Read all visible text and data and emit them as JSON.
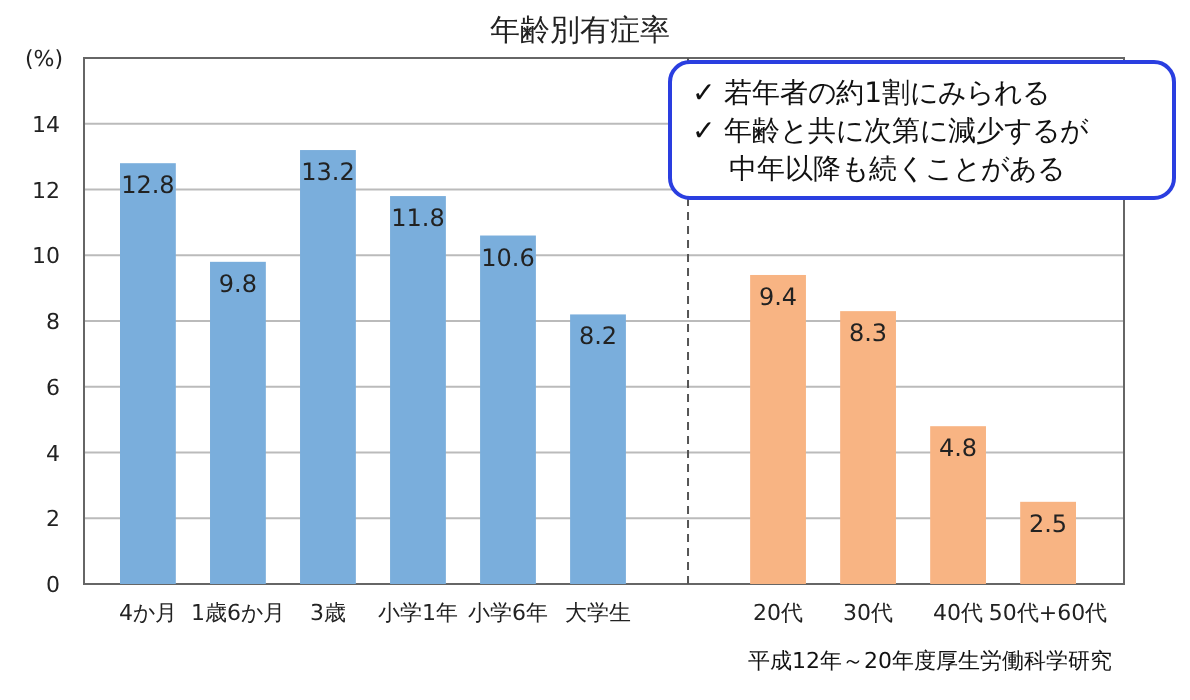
{
  "chart_data": {
    "type": "bar",
    "title": "年齢別有症率",
    "ylabel": "(%)",
    "categories": [
      "4か月",
      "1歳6か月",
      "3歳",
      "小学1年",
      "小学6年",
      "大学生",
      null,
      "20代",
      "30代",
      "40代",
      "50代+60代"
    ],
    "values": [
      12.8,
      9.8,
      13.2,
      11.8,
      10.6,
      8.2,
      null,
      9.4,
      8.3,
      4.8,
      2.5
    ],
    "colors": [
      "#7aaedc",
      "#7aaedc",
      "#7aaedc",
      "#7aaedc",
      "#7aaedc",
      "#7aaedc",
      null,
      "#f8b483",
      "#f8b483",
      "#f8b483",
      "#f8b483"
    ],
    "ylim": [
      0,
      16
    ],
    "yticks": [
      0,
      2,
      4,
      6,
      8,
      10,
      12,
      14
    ],
    "grid": "y",
    "data_labels": true,
    "annotations": [
      "✓ 若年者の約1割にみられる",
      "✓ 年齢と共に次第に減少するが中年以降も続くことがある",
      "平成12年～20年度厚生労働科学研究"
    ]
  }
}
